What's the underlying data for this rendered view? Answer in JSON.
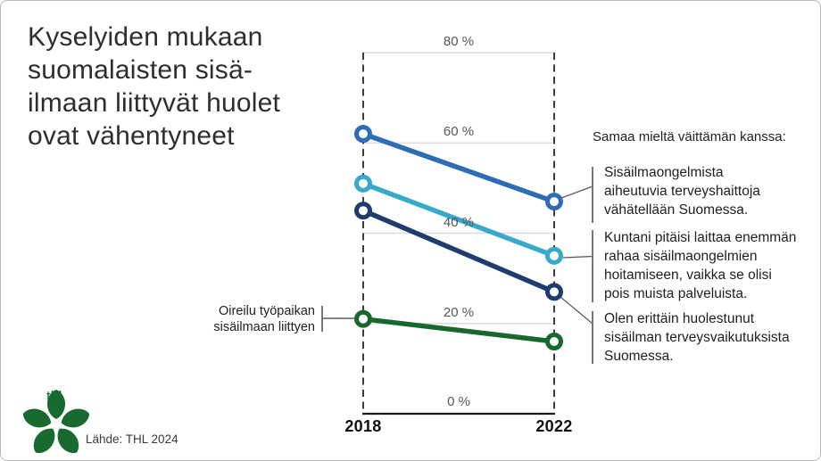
{
  "title": {
    "lines": [
      "Kyselyiden mukaan",
      "suomalaisten sisä-",
      "ilmaan liittyvät huolet",
      "ovat vähentyneet"
    ]
  },
  "chart_data": {
    "type": "line",
    "subtype": "slopegraph",
    "categories": [
      "2018",
      "2022"
    ],
    "series": [
      {
        "name": "Sisäilmaongelmista aiheutuvia terveyshaittoja vähätellään Suomessa.",
        "values": [
          62,
          47
        ],
        "color": "#2e6db5"
      },
      {
        "name": "Kuntani pitäisi laittaa enemmän rahaa sisäilmaongelmien hoitamiseen, vaikka se olisi pois muista palveluista.",
        "values": [
          51,
          35
        ],
        "color": "#38a9c9"
      },
      {
        "name": "Olen erittäin huolestunut sisäilman terveysvaikutuksista Suomessa.",
        "values": [
          45,
          27
        ],
        "color": "#1f3c6e"
      },
      {
        "name": "Oireilu työpaikan sisäilmaan liittyen",
        "values": [
          21,
          16
        ],
        "color": "#17682d"
      }
    ],
    "ylim": [
      0,
      80
    ],
    "yticks": [
      "80 %",
      "60 %",
      "40 %",
      "20 %",
      "0 %"
    ],
    "grid": true,
    "legend_position": "annotations-right"
  },
  "right_panel": {
    "header": "Samaa mieltä väittämän kanssa:",
    "labels": [
      {
        "lines": [
          "Sisäilmaongelmista",
          "aiheutuvia terveyshaittoja",
          "vähätellään Suomessa."
        ]
      },
      {
        "lines": [
          "Kuntani pitäisi laittaa enemmän",
          "rahaa sisäilmaongelmien",
          "hoitamiseen, vaikka se olisi",
          "pois muista palveluista."
        ]
      },
      {
        "lines": [
          "Olen erittäin huolestunut",
          "sisäilman terveysvaikutuksista",
          "Suomessa."
        ]
      }
    ]
  },
  "left_label": {
    "lines": [
      "Oireilu työpaikan",
      "sisäilmaan liittyen"
    ]
  },
  "x_axis": {
    "left": "2018",
    "right": "2022"
  },
  "source": {
    "text": "Lähde: THL 2024"
  },
  "logo": {
    "text": "thl",
    "color": "#186a30"
  },
  "colors": {
    "grid": "#dadada",
    "axis": "#1b1b1b",
    "tick_text": "#57585a",
    "title_text": "#2e2e2c",
    "connector": "#5a5a5a"
  }
}
